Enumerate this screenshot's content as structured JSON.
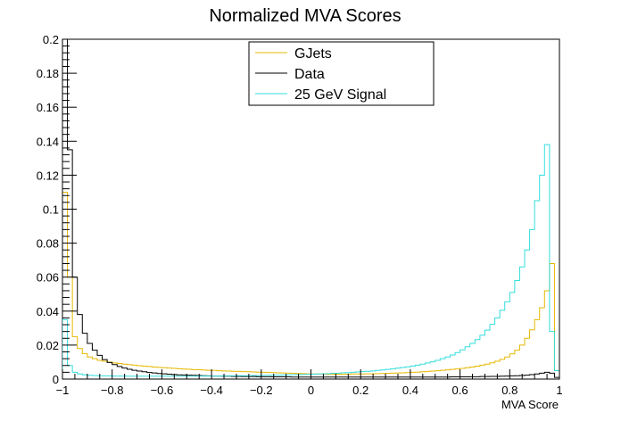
{
  "chart_data": {
    "type": "line",
    "title": "Normalized MVA Scores",
    "xlabel": "MVA Score",
    "ylabel": "",
    "xlim": [
      -1,
      1
    ],
    "ylim": [
      0,
      0.2
    ],
    "xticks": [
      -1,
      -0.8,
      -0.6,
      -0.4,
      -0.2,
      0,
      0.2,
      0.4,
      0.6,
      0.8,
      1
    ],
    "xtick_labels": [
      "−1",
      "−0.8",
      "−0.6",
      "−0.4",
      "−0.2",
      "0",
      "0.2",
      "0.4",
      "0.6",
      "0.8",
      "1"
    ],
    "yticks": [
      0,
      0.02,
      0.04,
      0.06,
      0.08,
      0.1,
      0.12,
      0.14,
      0.16,
      0.18,
      0.2
    ],
    "ytick_labels": [
      "0",
      "0.02",
      "0.04",
      "0.06",
      "0.08",
      "0.1",
      "0.12",
      "0.14",
      "0.16",
      "0.18",
      "0.2"
    ],
    "grid": false,
    "legend_position": "top-center",
    "bin_edges_range": [
      -1,
      1
    ],
    "n_bins": 100,
    "series": [
      {
        "name": "GJets",
        "color": "#e6b800",
        "values": [
          0.11,
          0.06,
          0.025,
          0.018,
          0.015,
          0.013,
          0.012,
          0.011,
          0.0105,
          0.01,
          0.0095,
          0.0092,
          0.0088,
          0.0085,
          0.0082,
          0.0079,
          0.0076,
          0.0074,
          0.0071,
          0.0069,
          0.0067,
          0.0065,
          0.0063,
          0.0061,
          0.0059,
          0.0058,
          0.0056,
          0.0055,
          0.0053,
          0.0052,
          0.0051,
          0.0049,
          0.0048,
          0.0047,
          0.0046,
          0.0045,
          0.0044,
          0.0043,
          0.0042,
          0.0041,
          0.004,
          0.0039,
          0.0038,
          0.0037,
          0.0036,
          0.0035,
          0.0034,
          0.0033,
          0.0032,
          0.0031,
          0.003,
          0.003,
          0.003,
          0.0029,
          0.0029,
          0.0029,
          0.0029,
          0.0029,
          0.003,
          0.003,
          0.003,
          0.0031,
          0.0031,
          0.0032,
          0.0033,
          0.0034,
          0.0035,
          0.0036,
          0.0037,
          0.0038,
          0.004,
          0.0041,
          0.0043,
          0.0045,
          0.0047,
          0.0049,
          0.0052,
          0.0054,
          0.0057,
          0.006,
          0.0063,
          0.0067,
          0.0071,
          0.0076,
          0.0082,
          0.0088,
          0.0096,
          0.0105,
          0.0116,
          0.013,
          0.0148,
          0.017,
          0.02,
          0.024,
          0.029,
          0.035,
          0.042,
          0.052,
          0.068,
          0.005
        ]
      },
      {
        "name": "Data",
        "color": "#000000",
        "values": [
          0.2,
          0.135,
          0.06,
          0.038,
          0.027,
          0.021,
          0.017,
          0.014,
          0.0115,
          0.0098,
          0.0085,
          0.0074,
          0.0065,
          0.0058,
          0.0052,
          0.0047,
          0.0043,
          0.0039,
          0.0036,
          0.0033,
          0.0031,
          0.0029,
          0.0027,
          0.0025,
          0.0024,
          0.0023,
          0.0022,
          0.0021,
          0.002,
          0.0019,
          0.0018,
          0.0018,
          0.0017,
          0.0017,
          0.0016,
          0.0016,
          0.0015,
          0.0015,
          0.0015,
          0.0014,
          0.0014,
          0.0014,
          0.0013,
          0.0013,
          0.0013,
          0.0013,
          0.0012,
          0.0012,
          0.0012,
          0.0012,
          0.0012,
          0.0012,
          0.0012,
          0.0012,
          0.0012,
          0.0012,
          0.0012,
          0.0012,
          0.0012,
          0.0012,
          0.0012,
          0.0012,
          0.0012,
          0.0012,
          0.0012,
          0.0012,
          0.0012,
          0.0012,
          0.0012,
          0.0012,
          0.0012,
          0.0012,
          0.0012,
          0.0012,
          0.0012,
          0.0012,
          0.0012,
          0.0012,
          0.0013,
          0.0013,
          0.0013,
          0.0013,
          0.0014,
          0.0014,
          0.0015,
          0.0015,
          0.0016,
          0.0016,
          0.0017,
          0.0018,
          0.0019,
          0.002,
          0.0021,
          0.0023,
          0.0026,
          0.003,
          0.0035,
          0.004,
          0.0035,
          0.001
        ]
      },
      {
        "name": "25 GeV Signal",
        "color": "#33dddd",
        "values": [
          0.035,
          0.008,
          0.004,
          0.003,
          0.0025,
          0.0022,
          0.0021,
          0.002,
          0.0019,
          0.0019,
          0.0018,
          0.0018,
          0.0018,
          0.0017,
          0.0017,
          0.0017,
          0.0017,
          0.0017,
          0.0017,
          0.0017,
          0.0017,
          0.0017,
          0.0017,
          0.0017,
          0.0017,
          0.0017,
          0.0017,
          0.0018,
          0.0018,
          0.0018,
          0.0018,
          0.0018,
          0.0019,
          0.0019,
          0.0019,
          0.002,
          0.002,
          0.002,
          0.0021,
          0.0021,
          0.0022,
          0.0022,
          0.0023,
          0.0023,
          0.0024,
          0.0025,
          0.0026,
          0.0026,
          0.0027,
          0.0028,
          0.0029,
          0.003,
          0.0031,
          0.0032,
          0.0034,
          0.0035,
          0.0037,
          0.0038,
          0.004,
          0.0042,
          0.0044,
          0.0046,
          0.0048,
          0.0051,
          0.0054,
          0.0057,
          0.006,
          0.0064,
          0.0068,
          0.0072,
          0.0077,
          0.0082,
          0.0088,
          0.0095,
          0.0102,
          0.011,
          0.012,
          0.013,
          0.0142,
          0.0156,
          0.0172,
          0.019,
          0.021,
          0.0232,
          0.0258,
          0.0288,
          0.0322,
          0.036,
          0.0405,
          0.0455,
          0.051,
          0.058,
          0.066,
          0.076,
          0.088,
          0.105,
          0.12,
          0.138,
          0.028,
          0.005
        ]
      }
    ]
  }
}
